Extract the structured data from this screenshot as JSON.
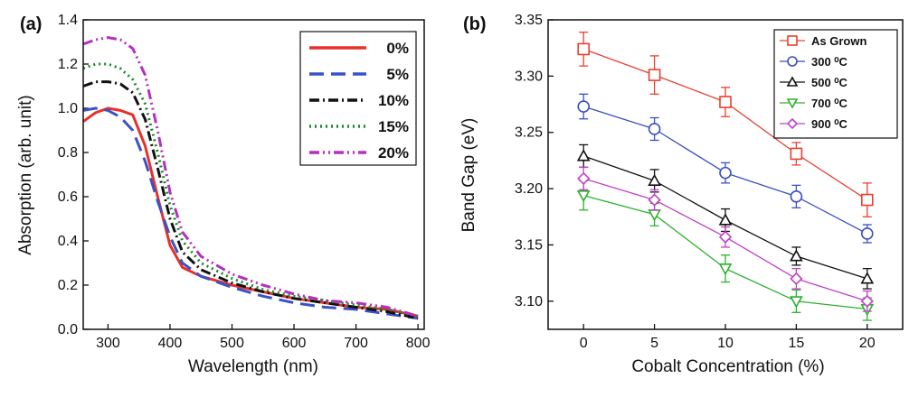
{
  "chart_data": [
    {
      "type": "line",
      "panel_label": "(a)",
      "xlabel": "Wavelength (nm)",
      "ylabel": "Absorption (arb. unit)",
      "xlim": [
        260,
        810
      ],
      "ylim": [
        0.0,
        1.4
      ],
      "xticks": [
        300,
        400,
        500,
        600,
        700,
        800
      ],
      "yticks": [
        0.0,
        0.2,
        0.4,
        0.6,
        0.8,
        1.0,
        1.2,
        1.4
      ],
      "legend_position": "top-right",
      "series": [
        {
          "name": "0%",
          "color": "#e8302a",
          "dash": "solid",
          "x": [
            260,
            280,
            300,
            320,
            340,
            360,
            380,
            400,
            420,
            450,
            500,
            550,
            600,
            650,
            700,
            750,
            800
          ],
          "y": [
            0.94,
            0.98,
            1.0,
            0.99,
            0.97,
            0.83,
            0.6,
            0.38,
            0.28,
            0.24,
            0.2,
            0.17,
            0.14,
            0.12,
            0.1,
            0.09,
            0.06
          ]
        },
        {
          "name": "5%",
          "color": "#3a52c8",
          "dash": "dashed",
          "x": [
            260,
            280,
            300,
            320,
            340,
            360,
            380,
            400,
            420,
            450,
            500,
            550,
            600,
            650,
            700,
            750,
            800
          ],
          "y": [
            0.99,
            1.0,
            0.99,
            0.96,
            0.9,
            0.76,
            0.58,
            0.42,
            0.3,
            0.24,
            0.19,
            0.15,
            0.12,
            0.1,
            0.09,
            0.07,
            0.05
          ]
        },
        {
          "name": "10%",
          "color": "#111111",
          "dash": "dashdot",
          "x": [
            260,
            280,
            300,
            320,
            340,
            360,
            380,
            400,
            420,
            450,
            500,
            550,
            600,
            650,
            700,
            750,
            800
          ],
          "y": [
            1.1,
            1.12,
            1.12,
            1.11,
            1.07,
            0.95,
            0.73,
            0.5,
            0.35,
            0.27,
            0.21,
            0.17,
            0.14,
            0.12,
            0.1,
            0.08,
            0.05
          ]
        },
        {
          "name": "15%",
          "color": "#1a8a2a",
          "dash": "dotted",
          "x": [
            260,
            280,
            300,
            320,
            340,
            360,
            380,
            400,
            420,
            450,
            500,
            550,
            600,
            650,
            700,
            750,
            800
          ],
          "y": [
            1.18,
            1.2,
            1.2,
            1.18,
            1.13,
            1.02,
            0.8,
            0.56,
            0.4,
            0.3,
            0.23,
            0.18,
            0.15,
            0.13,
            0.11,
            0.09,
            0.06
          ]
        },
        {
          "name": "20%",
          "color": "#b52fc0",
          "dash": "dashdotdot",
          "x": [
            260,
            280,
            300,
            320,
            340,
            360,
            380,
            400,
            420,
            450,
            500,
            550,
            600,
            650,
            700,
            750,
            800
          ],
          "y": [
            1.29,
            1.31,
            1.32,
            1.31,
            1.27,
            1.15,
            0.9,
            0.62,
            0.44,
            0.33,
            0.25,
            0.2,
            0.16,
            0.13,
            0.12,
            0.1,
            0.06
          ]
        }
      ]
    },
    {
      "type": "line",
      "panel_label": "(b)",
      "xlabel": "Cobalt Concentration (%)",
      "ylabel": "Band Gap (eV)",
      "xlim": [
        -2.5,
        22.5
      ],
      "ylim": [
        3.075,
        3.35
      ],
      "xticks": [
        0,
        5,
        10,
        15,
        20
      ],
      "yticks": [
        3.1,
        3.15,
        3.2,
        3.25,
        3.3,
        3.35
      ],
      "ytick_labels": [
        "3.10",
        "3.15",
        "3.20",
        "3.25",
        "3.30",
        "3.35"
      ],
      "legend_position": "top-right",
      "series": [
        {
          "name": "As Grown",
          "color": "#e8402f",
          "marker": "square",
          "x": [
            0,
            5,
            10,
            15,
            20
          ],
          "y": [
            3.324,
            3.301,
            3.277,
            3.231,
            3.19
          ],
          "err": [
            0.015,
            0.017,
            0.013,
            0.01,
            0.015
          ]
        },
        {
          "name": "300 ⁰C",
          "color": "#3a4fc0",
          "marker": "circle",
          "x": [
            0,
            5,
            10,
            15,
            20
          ],
          "y": [
            3.273,
            3.253,
            3.214,
            3.193,
            3.16
          ],
          "err": [
            0.011,
            0.01,
            0.009,
            0.01,
            0.008
          ]
        },
        {
          "name": "500 ⁰C",
          "color": "#111111",
          "marker": "triangle-up",
          "x": [
            0,
            5,
            10,
            15,
            20
          ],
          "y": [
            3.229,
            3.207,
            3.172,
            3.14,
            3.12
          ],
          "err": [
            0.01,
            0.01,
            0.01,
            0.008,
            0.009
          ]
        },
        {
          "name": "700 ⁰C",
          "color": "#2db02d",
          "marker": "triangle-down",
          "x": [
            0,
            5,
            10,
            15,
            20
          ],
          "y": [
            3.194,
            3.177,
            3.129,
            3.1,
            3.093
          ],
          "err": [
            0.013,
            0.01,
            0.012,
            0.01,
            0.01
          ]
        },
        {
          "name": "900 ⁰C",
          "color": "#c040c8",
          "marker": "diamond",
          "x": [
            0,
            5,
            10,
            15,
            20
          ],
          "y": [
            3.209,
            3.19,
            3.157,
            3.12,
            3.1
          ],
          "err": [
            0.01,
            0.009,
            0.009,
            0.009,
            0.009
          ]
        }
      ]
    }
  ]
}
